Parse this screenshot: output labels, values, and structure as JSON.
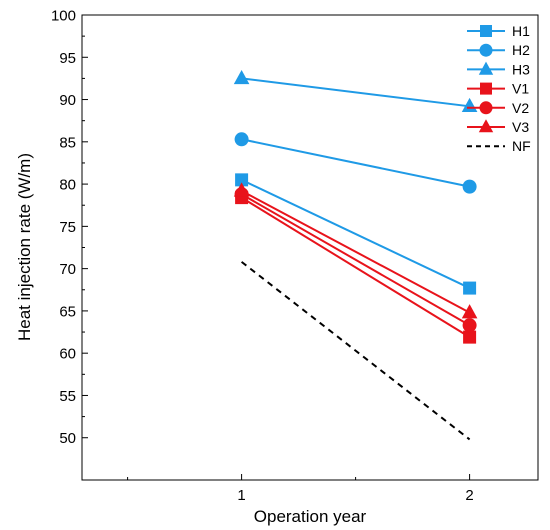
{
  "chart_data": {
    "type": "line",
    "xlabel": "Operation year",
    "ylabel": "Heat injection rate (W/m)",
    "x": [
      1,
      2
    ],
    "xlim": [
      0.3,
      2.3
    ],
    "ylim": [
      45,
      100
    ],
    "xticks": [
      "1",
      "2"
    ],
    "yticks": [
      "50",
      "55",
      "60",
      "65",
      "70",
      "75",
      "80",
      "85",
      "90",
      "95",
      "100"
    ],
    "grid": false,
    "legend_position": "top-right",
    "series": [
      {
        "name": "H1",
        "values": [
          80.5,
          67.7
        ],
        "color": "#1f9ae6",
        "marker": "square",
        "dash": false
      },
      {
        "name": "H2",
        "values": [
          85.3,
          79.7
        ],
        "color": "#1f9ae6",
        "marker": "circle",
        "dash": false
      },
      {
        "name": "H3",
        "values": [
          92.5,
          89.2
        ],
        "color": "#1f9ae6",
        "marker": "triangle",
        "dash": false
      },
      {
        "name": "V1",
        "values": [
          78.4,
          61.9
        ],
        "color": "#e8131b",
        "marker": "square",
        "dash": false
      },
      {
        "name": "V2",
        "values": [
          78.8,
          63.3
        ],
        "color": "#e8131b",
        "marker": "circle",
        "dash": false
      },
      {
        "name": "V3",
        "values": [
          79.2,
          64.8
        ],
        "color": "#e8131b",
        "marker": "triangle",
        "dash": false
      },
      {
        "name": "NF",
        "values": [
          70.8,
          49.8
        ],
        "color": "#000000",
        "marker": "none",
        "dash": true
      }
    ]
  }
}
